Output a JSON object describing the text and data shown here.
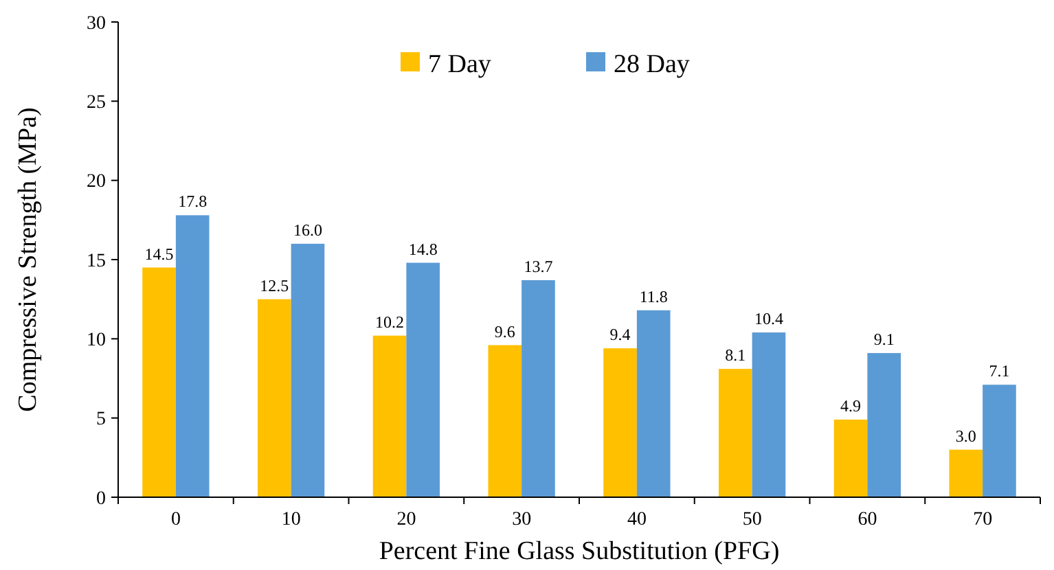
{
  "chart_data": {
    "type": "bar",
    "xlabel": "Percent Fine Glass Substitution (PFG)",
    "ylabel": "Compressive Strength (MPa)",
    "categories": [
      "0",
      "10",
      "20",
      "30",
      "40",
      "50",
      "60",
      "70"
    ],
    "series": [
      {
        "name": "7 Day",
        "color": "#ffc000",
        "values": [
          14.5,
          12.5,
          10.2,
          9.6,
          9.4,
          8.1,
          4.9,
          3.0
        ],
        "value_labels": [
          "14.5",
          "12.5",
          "10.2",
          "9.6",
          "9.4",
          "8.1",
          "4.9",
          "3.0"
        ]
      },
      {
        "name": "28 Day",
        "color": "#5b9bd5",
        "values": [
          17.8,
          16.0,
          14.8,
          13.7,
          11.8,
          10.4,
          9.1,
          7.1
        ],
        "value_labels": [
          "17.8",
          "16.0",
          "14.8",
          "13.7",
          "11.8",
          "10.4",
          "9.1",
          "7.1"
        ]
      }
    ],
    "ylim": [
      0,
      30
    ],
    "yticks": [
      0,
      5,
      10,
      15,
      20,
      25,
      30
    ],
    "grid": false,
    "legend": "top"
  }
}
